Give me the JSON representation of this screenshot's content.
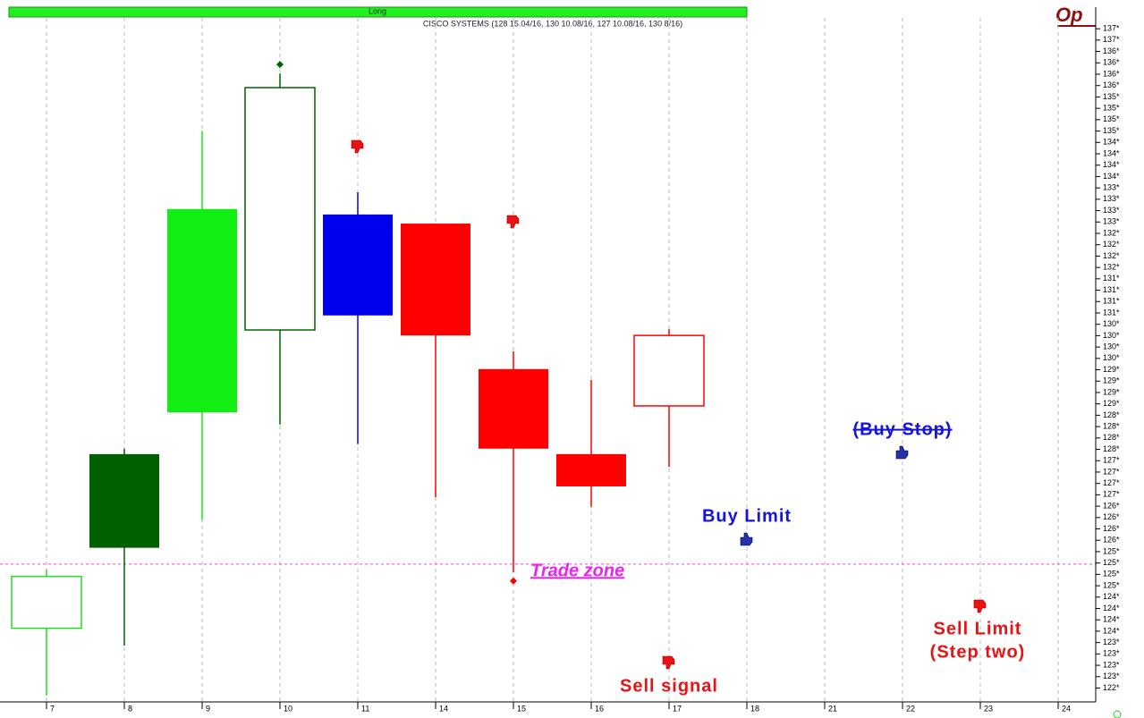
{
  "chart_data": {
    "type": "candlestick",
    "title": "CISCO SYSTEMS (128 15.04/16, 130 10.08/16, 127 10.08/16, 130 8/16)",
    "status": "Long",
    "corner_label": "Op",
    "categories": [
      "7",
      "8",
      "9",
      "10",
      "11",
      "14",
      "15",
      "16",
      "17",
      "18",
      "21",
      "22",
      "23",
      "24"
    ],
    "candles": [
      {
        "open": 123.69,
        "high": 124.98,
        "low": 122.21,
        "close": 124.83,
        "color": "#22dd22",
        "filled": false
      },
      {
        "open": 127.52,
        "high": 127.64,
        "low": 123.31,
        "close": 125.46,
        "color": "#005f00",
        "filled": true
      },
      {
        "open": 132.91,
        "high": 134.63,
        "low": 126.07,
        "close": 128.44,
        "color": "#11ee11",
        "filled": true
      },
      {
        "open": 130.25,
        "high": 135.89,
        "low": 128.17,
        "close": 135.58,
        "color": "#006400",
        "filled": false,
        "signal": 136.09
      },
      {
        "open": 132.79,
        "high": 133.28,
        "low": 127.74,
        "close": 130.57,
        "color": "#0000ee",
        "filled": true
      },
      {
        "open": 132.59,
        "high": 132.59,
        "low": 126.57,
        "close": 130.13,
        "color": "#ff0000",
        "filled": true
      },
      {
        "open": 129.39,
        "high": 129.78,
        "low": 124.92,
        "close": 127.64,
        "color": "#ff0000",
        "filled": true,
        "signal": 124.73
      },
      {
        "open": 127.52,
        "high": 129.15,
        "low": 126.36,
        "close": 126.81,
        "color": "#ff0000",
        "filled": true
      },
      {
        "open": 128.58,
        "high": 130.27,
        "low": 127.24,
        "close": 130.13,
        "color": "#ff0000",
        "filled": false
      }
    ],
    "trade_zone_level": 125.1,
    "annotations": {
      "trade_zone": "Trade zone",
      "buy_limit": "Buy Limit",
      "buy_stop": "(Buy Stop)",
      "sell_limit": "Sell Limit",
      "step_two": "(Step two)",
      "sell_signal": "Sell signal"
    },
    "ylim": [
      122.07,
      137.35
    ],
    "yticks": [
      {
        "value": 136.875,
        "label": "137*"
      },
      {
        "value": 136.625,
        "label": "137*"
      },
      {
        "value": 136.375,
        "label": "136*"
      },
      {
        "value": 136.125,
        "label": "136*"
      },
      {
        "value": 135.875,
        "label": "136*"
      },
      {
        "value": 135.625,
        "label": "136*"
      },
      {
        "value": 135.375,
        "label": "135*"
      },
      {
        "value": 135.125,
        "label": "135*"
      },
      {
        "value": 134.875,
        "label": "135*"
      },
      {
        "value": 134.625,
        "label": "135*"
      },
      {
        "value": 134.375,
        "label": "134*"
      },
      {
        "value": 134.125,
        "label": "134*"
      },
      {
        "value": 133.875,
        "label": "134*"
      },
      {
        "value": 133.625,
        "label": "134*"
      },
      {
        "value": 133.375,
        "label": "133*"
      },
      {
        "value": 133.125,
        "label": "133*"
      },
      {
        "value": 132.875,
        "label": "133*"
      },
      {
        "value": 132.625,
        "label": "133*"
      },
      {
        "value": 132.375,
        "label": "132*"
      },
      {
        "value": 132.125,
        "label": "132*"
      },
      {
        "value": 131.875,
        "label": "132*"
      },
      {
        "value": 131.625,
        "label": "132*"
      },
      {
        "value": 131.375,
        "label": "131*"
      },
      {
        "value": 131.125,
        "label": "131*"
      },
      {
        "value": 130.875,
        "label": "131*"
      },
      {
        "value": 130.625,
        "label": "131*"
      },
      {
        "value": 130.375,
        "label": "130*"
      },
      {
        "value": 130.125,
        "label": "130*"
      },
      {
        "value": 129.875,
        "label": "130*"
      },
      {
        "value": 129.625,
        "label": "130*"
      },
      {
        "value": 129.375,
        "label": "129*"
      },
      {
        "value": 129.125,
        "label": "129*"
      },
      {
        "value": 128.875,
        "label": "129*"
      },
      {
        "value": 128.625,
        "label": "129*"
      },
      {
        "value": 128.375,
        "label": "128*"
      },
      {
        "value": 128.125,
        "label": "128*"
      },
      {
        "value": 127.875,
        "label": "128*"
      },
      {
        "value": 127.625,
        "label": "128*"
      },
      {
        "value": 127.375,
        "label": "127*"
      },
      {
        "value": 127.125,
        "label": "127*"
      },
      {
        "value": 126.875,
        "label": "127*"
      },
      {
        "value": 126.625,
        "label": "127*"
      },
      {
        "value": 126.375,
        "label": "126*"
      },
      {
        "value": 126.125,
        "label": "126*"
      },
      {
        "value": 125.875,
        "label": "126*"
      },
      {
        "value": 125.625,
        "label": "126*"
      },
      {
        "value": 125.375,
        "label": "125*"
      },
      {
        "value": 125.125,
        "label": "125*"
      },
      {
        "value": 124.875,
        "label": "125*"
      },
      {
        "value": 124.625,
        "label": "125*"
      },
      {
        "value": 124.375,
        "label": "124*"
      },
      {
        "value": 124.125,
        "label": "124*"
      },
      {
        "value": 123.875,
        "label": "124*"
      },
      {
        "value": 123.625,
        "label": "124*"
      },
      {
        "value": 123.375,
        "label": "123*"
      },
      {
        "value": 123.125,
        "label": "123*"
      },
      {
        "value": 122.875,
        "label": "123*"
      },
      {
        "value": 122.625,
        "label": "123*"
      },
      {
        "value": 122.375,
        "label": "122*"
      }
    ],
    "grid": true
  }
}
